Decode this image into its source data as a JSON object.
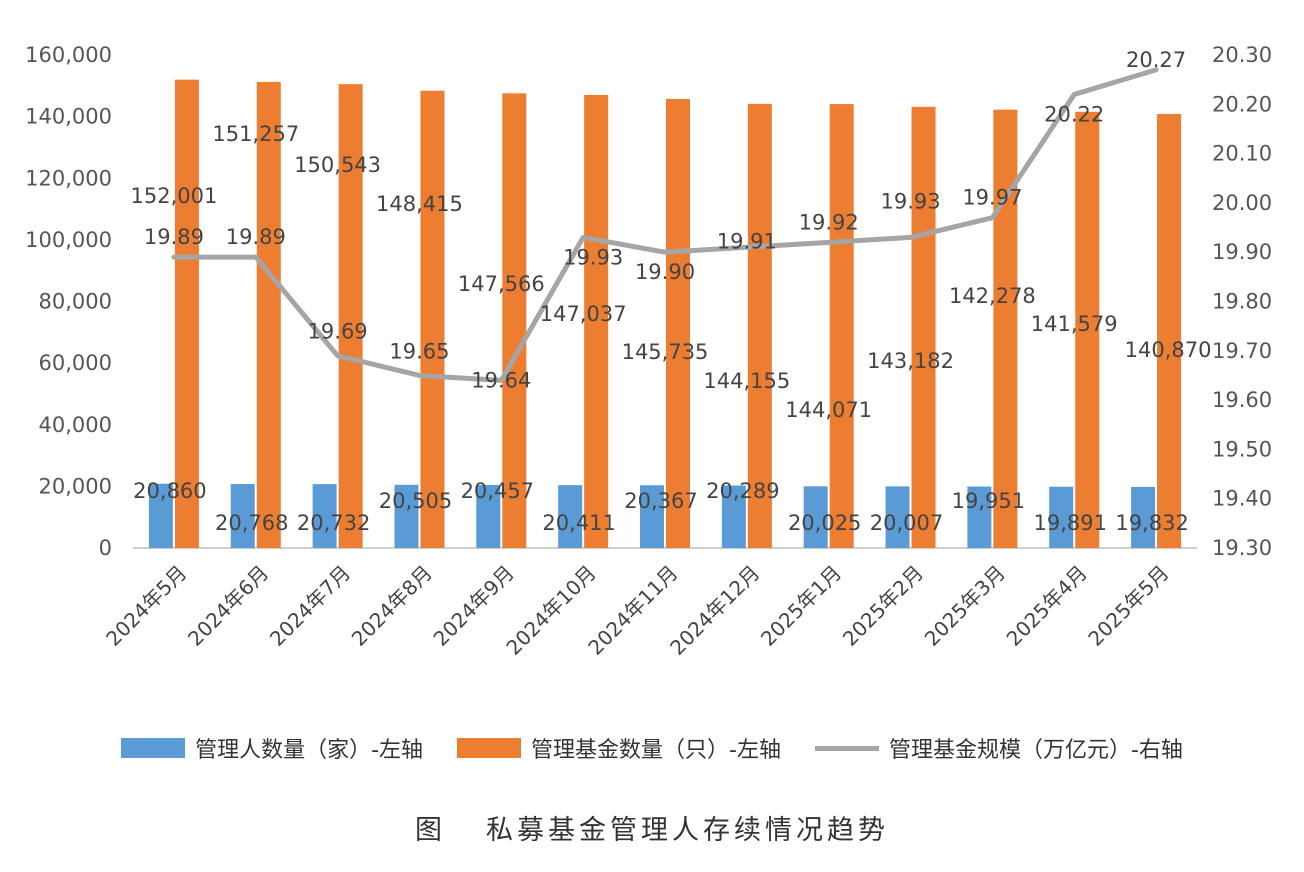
{
  "chart_data": {
    "type": "bar",
    "categories": [
      "2024年5月",
      "2024年6月",
      "2024年7月",
      "2024年8月",
      "2024年9月",
      "2024年10月",
      "2024年11月",
      "2024年12月",
      "2025年1月",
      "2025年2月",
      "2025年3月",
      "2025年4月",
      "2025年5月"
    ],
    "series": [
      {
        "name": "管理人数量（家）-左轴",
        "type": "bar",
        "axis": "left",
        "color": "#5B9BD5",
        "values": [
          20860,
          20768,
          20732,
          20505,
          20457,
          20411,
          20367,
          20289,
          20025,
          20007,
          19951,
          19891,
          19832
        ],
        "labels": [
          "20,860",
          "20,768",
          "20,732",
          "20,505",
          "20,457",
          "20,411",
          "20,367",
          "20,289",
          "20,025",
          "20,007",
          "19,951",
          "19,891",
          "19,832"
        ]
      },
      {
        "name": "管理基金数量（只）-左轴",
        "type": "bar",
        "axis": "left",
        "color": "#ED7D31",
        "values": [
          152001,
          151257,
          150543,
          148415,
          147566,
          147037,
          145735,
          144155,
          144071,
          143182,
          142278,
          141579,
          140870
        ],
        "labels": [
          "152,001",
          "151,257",
          "150,543",
          "148,415",
          "147,566",
          "147,037",
          "145,735",
          "144,155",
          "144,071",
          "143,182",
          "142,278",
          "141,579",
          "140,870"
        ]
      },
      {
        "name": "管理基金规模（万亿元）-右轴",
        "type": "line",
        "axis": "right",
        "color": "#A5A5A5",
        "values": [
          19.89,
          19.89,
          19.69,
          19.65,
          19.64,
          19.93,
          19.9,
          19.91,
          19.92,
          19.93,
          19.97,
          20.22,
          20.27
        ],
        "labels": [
          "19.89",
          "19.89",
          "19.69",
          "19.65",
          "19.64",
          "19.93",
          "19.90",
          "19.91",
          "19.92",
          "19.93",
          "19.97",
          "20.22",
          "20.27"
        ]
      }
    ],
    "y_left": {
      "min": 0,
      "max": 160000,
      "ticks": [
        0,
        20000,
        40000,
        60000,
        80000,
        100000,
        120000,
        140000,
        160000
      ],
      "tick_labels": [
        "0",
        "20,000",
        "40,000",
        "60,000",
        "80,000",
        "100,000",
        "120,000",
        "140,000",
        "160,000"
      ]
    },
    "y_right": {
      "min": 19.3,
      "max": 20.3,
      "ticks": [
        19.3,
        19.4,
        19.5,
        19.6,
        19.7,
        19.8,
        19.9,
        20.0,
        20.1,
        20.2,
        20.3
      ],
      "tick_labels": [
        "19.30",
        "19.40",
        "19.50",
        "19.60",
        "19.70",
        "19.80",
        "19.90",
        "20.00",
        "20.10",
        "20.20",
        "20.30"
      ]
    },
    "grid": false,
    "legend_position": "bottom"
  },
  "legend": {
    "items": [
      {
        "label": "管理人数量（家）-左轴",
        "color": "#5B9BD5",
        "kind": "bar"
      },
      {
        "label": "管理基金数量（只）-左轴",
        "color": "#ED7D31",
        "kind": "bar"
      },
      {
        "label": "管理基金规模（万亿元）-右轴",
        "color": "#A5A5A5",
        "kind": "line"
      }
    ]
  },
  "caption": {
    "figure_label": "图",
    "title": "私募基金管理人存续情况趋势"
  }
}
